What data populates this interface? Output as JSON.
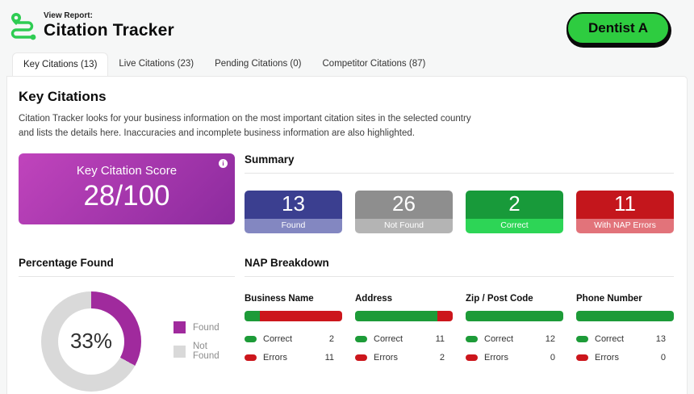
{
  "header": {
    "view_report_label": "View Report:",
    "title": "Citation Tracker",
    "business_button": "Dentist A",
    "brand_green": "#2ecc52",
    "button_green": "#2ecc40"
  },
  "tabs": [
    {
      "label": "Key Citations (13)",
      "active": true
    },
    {
      "label": "Live Citations (23)",
      "active": false
    },
    {
      "label": "Pending Citations (0)",
      "active": false
    },
    {
      "label": "Competitor Citations (87)",
      "active": false
    }
  ],
  "main": {
    "heading": "Key Citations",
    "description": "Citation Tracker looks for your business information on the most important citation sites in the selected country and lists the details here. Inaccuracies and incomplete business information are also highlighted.",
    "score_card": {
      "title": "Key Citation Score",
      "value": "28/100",
      "info_glyph": "i",
      "gradient_from": "#c044bc",
      "gradient_to": "#8c2b9e"
    },
    "summary": {
      "heading": "Summary",
      "cards": [
        {
          "value": "13",
          "label": "Found",
          "color": "#3b3f90",
          "footer_color": "#8387c1"
        },
        {
          "value": "26",
          "label": "Not Found",
          "color": "#8e8e8e",
          "footer_color": "#b4b4b4"
        },
        {
          "value": "2",
          "label": "Correct",
          "color": "#189a3a",
          "footer_color": "#2dd556"
        },
        {
          "value": "11",
          "label": "With NAP Errors",
          "color": "#c4161c",
          "footer_color": "#e2737a"
        }
      ]
    },
    "percentage_found": {
      "heading": "Percentage Found",
      "center_label": "33%",
      "found_pct": 33,
      "legend": [
        {
          "label": "Found",
          "color": "#a02a9d"
        },
        {
          "label": "Not Found",
          "color": "#d9d9d9"
        }
      ]
    },
    "nap_breakdown": {
      "heading": "NAP Breakdown",
      "correct_label": "Correct",
      "errors_label": "Errors",
      "colors": {
        "correct": "#1d9b38",
        "errors": "#cc161c"
      },
      "columns": [
        {
          "title": "Business Name",
          "correct": 2,
          "errors": 11
        },
        {
          "title": "Address",
          "correct": 11,
          "errors": 2
        },
        {
          "title": "Zip / Post Code",
          "correct": 12,
          "errors": 0
        },
        {
          "title": "Phone Number",
          "correct": 13,
          "errors": 0
        }
      ]
    }
  },
  "chart_data": [
    {
      "type": "pie",
      "title": "Percentage Found",
      "categories": [
        "Found",
        "Not Found"
      ],
      "values": [
        33,
        67
      ],
      "colors": [
        "#a02a9d",
        "#d9d9d9"
      ],
      "center_label": "33%",
      "legend_position": "right"
    },
    {
      "type": "bar",
      "title": "NAP Breakdown",
      "categories": [
        "Business Name",
        "Address",
        "Zip / Post Code",
        "Phone Number"
      ],
      "series": [
        {
          "name": "Correct",
          "values": [
            2,
            11,
            12,
            13
          ],
          "color": "#1d9b38"
        },
        {
          "name": "Errors",
          "values": [
            11,
            2,
            0,
            0
          ],
          "color": "#cc161c"
        }
      ]
    }
  ]
}
